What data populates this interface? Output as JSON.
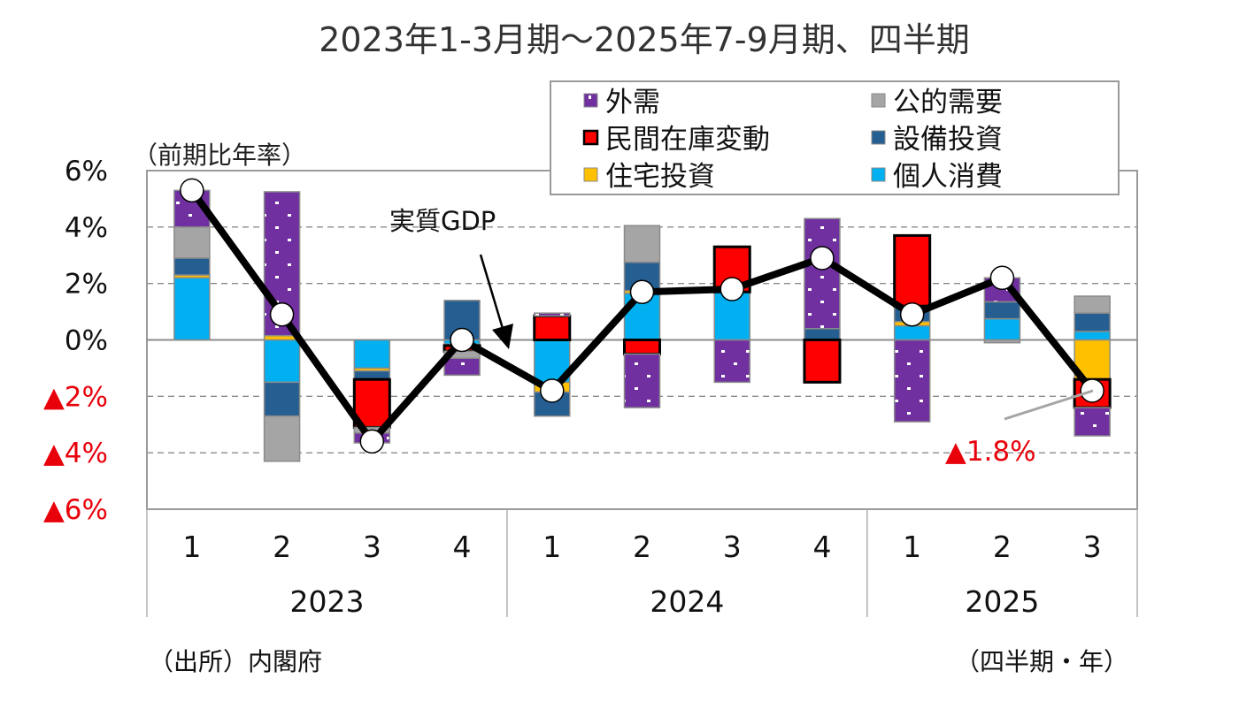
{
  "chart_data": {
    "type": "bar",
    "stacked": true,
    "title": "2023年1-3月期～2025年7-9月期、四半期",
    "ylabel": "（前期比年率）",
    "xlabel": "（四半期・年）",
    "source": "（出所）内閣府",
    "ylim": [
      -6,
      6
    ],
    "yticks": [
      {
        "value": 6,
        "label": "6%"
      },
      {
        "value": 4,
        "label": "4%"
      },
      {
        "value": 2,
        "label": "2%"
      },
      {
        "value": 0,
        "label": "0%"
      },
      {
        "value": -2,
        "label": "▲2%"
      },
      {
        "value": -4,
        "label": "▲4%"
      },
      {
        "value": -6,
        "label": "▲6%"
      }
    ],
    "grid": true,
    "legend_position": "top-right",
    "categories": [
      "1",
      "2",
      "3",
      "4",
      "1",
      "2",
      "3",
      "4",
      "1",
      "2",
      "3"
    ],
    "years": [
      {
        "label": "2023",
        "count": 4
      },
      {
        "label": "2024",
        "count": 4
      },
      {
        "label": "2025",
        "count": 3
      }
    ],
    "series": [
      {
        "name": "個人消費",
        "color": "#00b0f0",
        "values": [
          2.2,
          -1.5,
          -1.0,
          -0.15,
          -1.5,
          1.65,
          1.7,
          0.0,
          0.5,
          0.75,
          0.3
        ]
      },
      {
        "name": "住宅投資",
        "color": "#ffc000",
        "values": [
          0.1,
          0.15,
          -0.1,
          -0.05,
          -0.35,
          0.1,
          0.0,
          0.0,
          0.15,
          0.0,
          -1.4
        ]
      },
      {
        "name": "設備投資",
        "color": "#255e91",
        "values": [
          0.6,
          -1.2,
          -0.3,
          1.4,
          -0.85,
          1.0,
          0.0,
          0.4,
          0.55,
          0.6,
          0.65
        ]
      },
      {
        "name": "民間在庫変動",
        "color": "#ff0000",
        "values": [
          0.0,
          0.0,
          -1.7,
          -0.2,
          0.85,
          -0.5,
          1.6,
          -1.5,
          2.5,
          0.0,
          -1.0
        ]
      },
      {
        "name": "公的需要",
        "color": "#a5a5a5",
        "values": [
          1.1,
          -1.6,
          -0.2,
          -0.25,
          0.0,
          1.3,
          0.0,
          0.0,
          0.0,
          -0.1,
          0.6
        ]
      },
      {
        "name": "外需",
        "color": "#7030a0",
        "values": [
          1.3,
          5.1,
          -0.35,
          -0.6,
          0.1,
          -1.9,
          -1.5,
          3.9,
          -2.9,
          0.85,
          -1.0
        ]
      }
    ],
    "line": {
      "name": "実質GDP",
      "values": [
        5.3,
        0.9,
        -3.6,
        0.0,
        -1.8,
        1.7,
        1.8,
        2.9,
        0.9,
        2.2,
        -1.8
      ]
    },
    "legend": [
      "外需",
      "公的需要",
      "民間在庫変動",
      "設備投資",
      "住宅投資",
      "個人消費"
    ],
    "annotations": {
      "gdp_label": "実質GDP",
      "last_value_label": "▲1.8%"
    }
  }
}
